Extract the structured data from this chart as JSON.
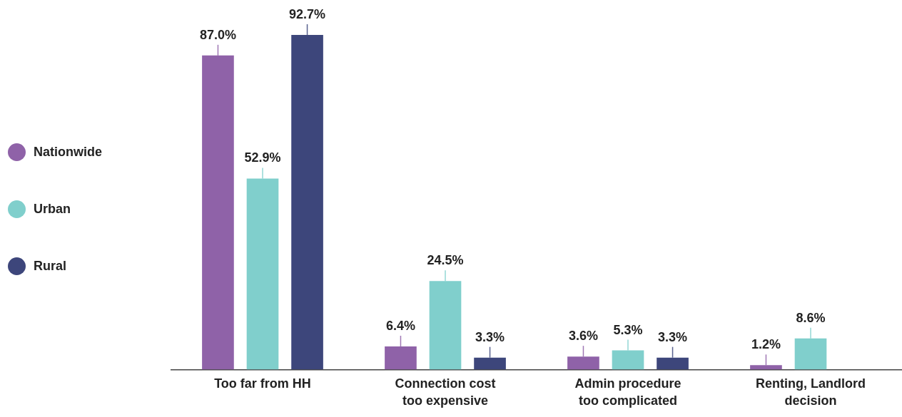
{
  "chart_data": {
    "type": "bar",
    "categories": [
      "Too far from HH",
      "Connection cost too expensive",
      "Admin procedure too complicated",
      "Renting, Landlord decision"
    ],
    "series": [
      {
        "name": "Nationwide",
        "color": "#8f62a8",
        "values": [
          87.0,
          6.4,
          3.6,
          1.2
        ],
        "value_labels": [
          "87.0%",
          "6.4%",
          "3.6%",
          "1.2%"
        ]
      },
      {
        "name": "Urban",
        "color": "#80cfcc",
        "values": [
          52.9,
          24.5,
          5.3,
          8.6
        ],
        "value_labels": [
          "52.9%",
          "24.5%",
          "5.3%",
          "8.6%"
        ]
      },
      {
        "name": "Rural",
        "color": "#3d467b",
        "values": [
          92.7,
          3.3,
          3.3,
          null
        ],
        "value_labels": [
          "92.7%",
          "3.3%",
          "3.3%",
          null
        ]
      }
    ],
    "tick_labels": "x",
    "grid": false,
    "legend": "left"
  }
}
